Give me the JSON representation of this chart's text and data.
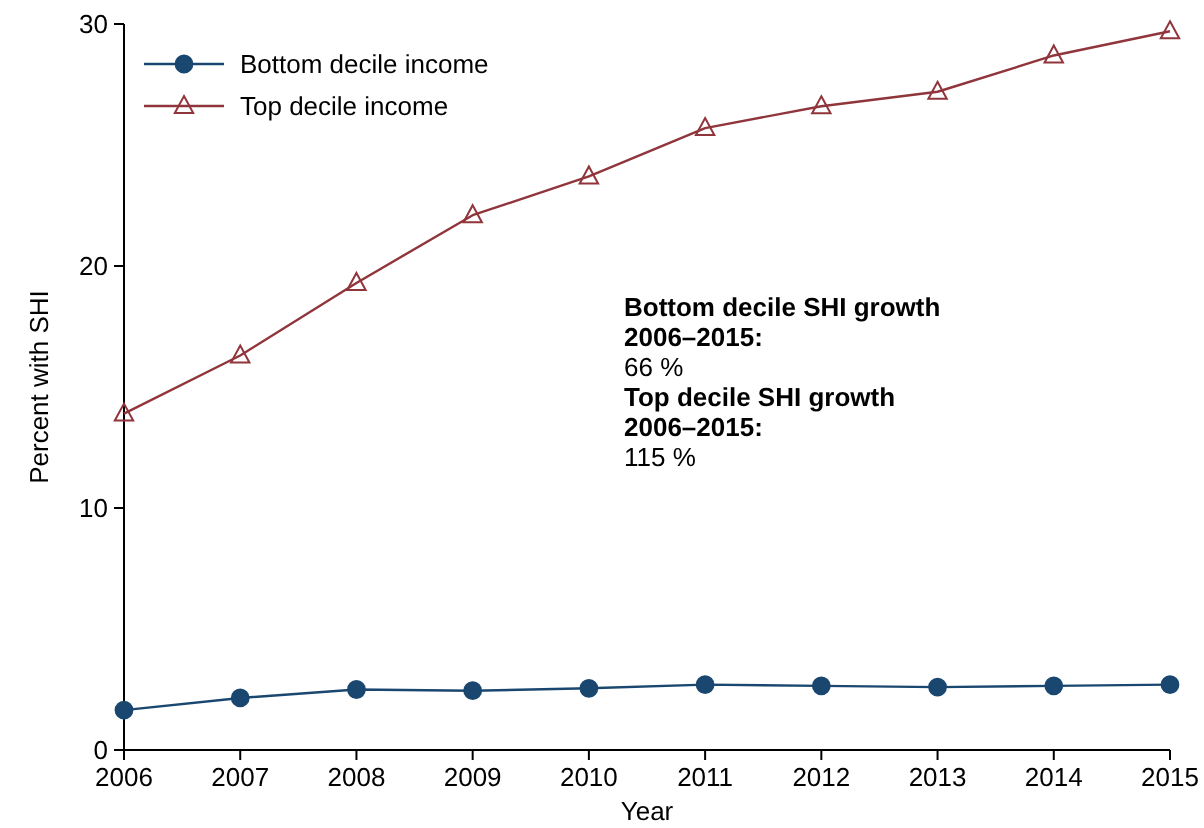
{
  "chart_data": {
    "type": "line",
    "xlabel": "Year",
    "ylabel": "Percent with SHI",
    "x": [
      2006,
      2007,
      2008,
      2009,
      2010,
      2011,
      2012,
      2013,
      2014,
      2015
    ],
    "series": [
      {
        "name": "Bottom decile income",
        "color": "#1a476f",
        "marker": "circle",
        "values": [
          1.65,
          2.15,
          2.5,
          2.45,
          2.55,
          2.7,
          2.65,
          2.6,
          2.65,
          2.7
        ]
      },
      {
        "name": "Top decile income",
        "color": "#90353b",
        "marker": "triangle",
        "values": [
          13.9,
          16.3,
          19.3,
          22.1,
          23.7,
          25.7,
          26.6,
          27.2,
          28.7,
          29.7
        ]
      }
    ],
    "xlim": [
      2006,
      2015
    ],
    "xticks": [
      2006,
      2007,
      2008,
      2009,
      2010,
      2011,
      2012,
      2013,
      2014,
      2015
    ],
    "ylim": [
      0,
      30
    ],
    "yticks": [
      0,
      10,
      20,
      30
    ],
    "grid": false,
    "legend": "top left",
    "annotations": [
      "Bottom decile SHI growth\n2006–2015:",
      "66 %",
      "Top decile SHI growth\n2006–2015:",
      "115 %"
    ]
  }
}
